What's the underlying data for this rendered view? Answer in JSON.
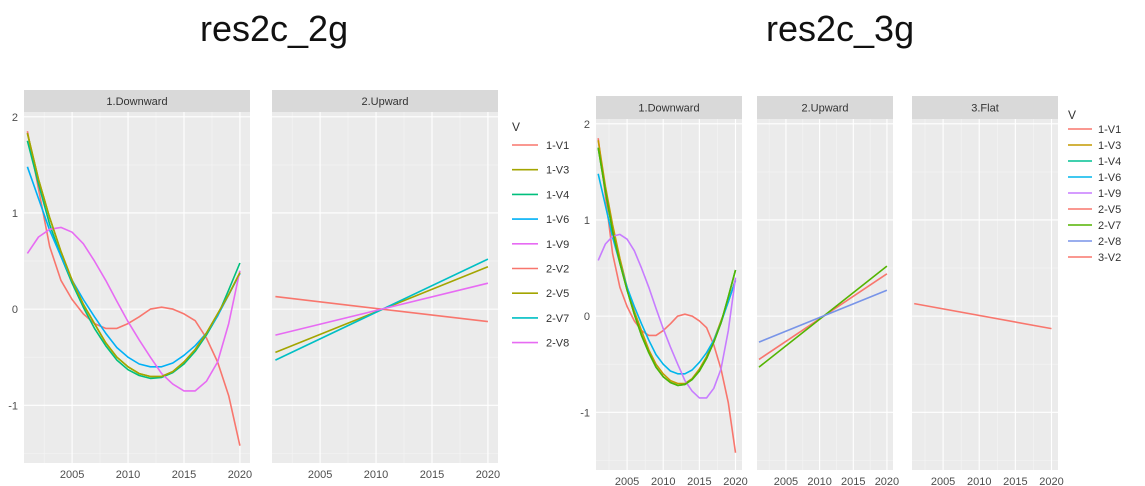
{
  "titles": {
    "left": "res2c_2g",
    "right": "res2c_3g"
  },
  "chart_data": [
    {
      "type": "line",
      "title": "res2c_2g",
      "x_ticks": [
        "2005",
        "2010",
        "2015",
        "2020"
      ],
      "y_ticks": [
        "-1",
        "0",
        "1",
        "2"
      ],
      "xlim": [
        2000.7,
        2020.9
      ],
      "ylim": [
        -1.6,
        2.05
      ],
      "legend_title": "V",
      "legend_position": "right",
      "panels": [
        {
          "name": "1.Downward",
          "series": [
            {
              "name": "1-V1",
              "color": "#F8766D",
              "x": [
                2001,
                2002,
                2003,
                2004,
                2005,
                2006,
                2007,
                2008,
                2009,
                2010,
                2011,
                2012,
                2013,
                2014,
                2015,
                2016,
                2017,
                2018,
                2019,
                2020
              ],
              "y": [
                1.85,
                1.25,
                0.65,
                0.3,
                0.1,
                -0.05,
                -0.15,
                -0.2,
                -0.2,
                -0.15,
                -0.08,
                0.0,
                0.02,
                0.0,
                -0.05,
                -0.12,
                -0.3,
                -0.55,
                -0.9,
                -1.42
              ]
            },
            {
              "name": "1-V3",
              "color": "#A3A500",
              "x": [
                2001,
                2002,
                2003,
                2004,
                2005,
                2006,
                2007,
                2008,
                2009,
                2010,
                2011,
                2012,
                2013,
                2014,
                2015,
                2016,
                2017,
                2018,
                2019,
                2020
              ],
              "y": [
                1.83,
                1.35,
                0.95,
                0.6,
                0.3,
                0.05,
                -0.15,
                -0.35,
                -0.5,
                -0.6,
                -0.67,
                -0.7,
                -0.7,
                -0.65,
                -0.55,
                -0.42,
                -0.25,
                -0.05,
                0.15,
                0.38
              ]
            },
            {
              "name": "1-V4",
              "color": "#00BF7D",
              "x": [
                2001,
                2002,
                2003,
                2004,
                2005,
                2006,
                2007,
                2008,
                2009,
                2010,
                2011,
                2012,
                2013,
                2014,
                2015,
                2016,
                2017,
                2018,
                2019,
                2020
              ],
              "y": [
                1.75,
                1.3,
                0.88,
                0.55,
                0.27,
                0.02,
                -0.2,
                -0.38,
                -0.53,
                -0.63,
                -0.69,
                -0.72,
                -0.71,
                -0.66,
                -0.57,
                -0.44,
                -0.27,
                -0.07,
                0.2,
                0.48
              ]
            },
            {
              "name": "1-V6",
              "color": "#00B0F6",
              "x": [
                2001,
                2002,
                2003,
                2004,
                2005,
                2006,
                2007,
                2008,
                2009,
                2010,
                2011,
                2012,
                2013,
                2014,
                2015,
                2016,
                2017,
                2018,
                2019,
                2020
              ],
              "y": [
                1.48,
                1.15,
                0.82,
                0.55,
                0.3,
                0.1,
                -0.08,
                -0.25,
                -0.4,
                -0.5,
                -0.57,
                -0.6,
                -0.6,
                -0.56,
                -0.48,
                -0.38,
                -0.25,
                -0.07,
                0.15,
                0.37
              ]
            },
            {
              "name": "1-V9",
              "color": "#E76BF3",
              "x": [
                2001,
                2002,
                2003,
                2004,
                2005,
                2006,
                2007,
                2008,
                2009,
                2010,
                2011,
                2012,
                2013,
                2014,
                2015,
                2016,
                2017,
                2018,
                2019,
                2020
              ],
              "y": [
                0.58,
                0.75,
                0.83,
                0.85,
                0.8,
                0.68,
                0.5,
                0.3,
                0.08,
                -0.13,
                -0.32,
                -0.5,
                -0.67,
                -0.78,
                -0.85,
                -0.85,
                -0.75,
                -0.55,
                -0.15,
                0.4
              ]
            },
            {
              "name": "2-V5",
              "color": "#A3A500",
              "x": [
                2001,
                2002,
                2003,
                2004,
                2005,
                2006,
                2007,
                2008,
                2009,
                2010,
                2011,
                2012,
                2013,
                2014,
                2015,
                2016,
                2017,
                2018,
                2019,
                2020
              ],
              "y": [
                1.83,
                1.35,
                0.95,
                0.6,
                0.3,
                0.05,
                -0.15,
                -0.35,
                -0.5,
                -0.6,
                -0.67,
                -0.7,
                -0.7,
                -0.65,
                -0.55,
                -0.42,
                -0.25,
                -0.05,
                0.15,
                0.38
              ]
            }
          ]
        },
        {
          "name": "2.Upward",
          "series": [
            {
              "name": "2-V2",
              "color": "#F8766D",
              "x": [
                2001,
                2020
              ],
              "y": [
                0.13,
                -0.13
              ]
            },
            {
              "name": "2-V5",
              "color": "#A3A500",
              "x": [
                2001,
                2020
              ],
              "y": [
                -0.45,
                0.44
              ]
            },
            {
              "name": "2-V7",
              "color": "#00BFC4",
              "x": [
                2001,
                2020
              ],
              "y": [
                -0.53,
                0.52
              ]
            },
            {
              "name": "2-V8",
              "color": "#E76BF3",
              "x": [
                2001,
                2020
              ],
              "y": [
                -0.27,
                0.27
              ]
            }
          ]
        }
      ],
      "legend": [
        {
          "name": "1-V1",
          "color": "#F8766D"
        },
        {
          "name": "1-V3",
          "color": "#A3A500"
        },
        {
          "name": "1-V4",
          "color": "#00BF7D"
        },
        {
          "name": "1-V6",
          "color": "#00B0F6"
        },
        {
          "name": "1-V9",
          "color": "#E76BF3"
        },
        {
          "name": "2-V2",
          "color": "#F8766D"
        },
        {
          "name": "2-V5",
          "color": "#A3A500"
        },
        {
          "name": "2-V7",
          "color": "#00BFC4"
        },
        {
          "name": "2-V8",
          "color": "#E76BF3"
        }
      ]
    },
    {
      "type": "line",
      "title": "res2c_3g",
      "x_ticks": [
        "2005",
        "2010",
        "2015",
        "2020"
      ],
      "y_ticks": [
        "-1",
        "0",
        "1",
        "2"
      ],
      "xlim": [
        2000.7,
        2020.9
      ],
      "ylim": [
        -1.6,
        2.05
      ],
      "legend_title": "V",
      "legend_position": "right",
      "panels": [
        {
          "name": "1.Downward",
          "series": [
            {
              "name": "1-V1",
              "color": "#F8766D",
              "x": [
                2001,
                2002,
                2003,
                2004,
                2005,
                2006,
                2007,
                2008,
                2009,
                2010,
                2011,
                2012,
                2013,
                2014,
                2015,
                2016,
                2017,
                2018,
                2019,
                2020
              ],
              "y": [
                1.85,
                1.25,
                0.65,
                0.3,
                0.1,
                -0.05,
                -0.15,
                -0.2,
                -0.2,
                -0.15,
                -0.08,
                0.0,
                0.02,
                0.0,
                -0.05,
                -0.12,
                -0.3,
                -0.55,
                -0.9,
                -1.42
              ]
            },
            {
              "name": "1-V3",
              "color": "#C49A00",
              "x": [
                2001,
                2002,
                2003,
                2004,
                2005,
                2006,
                2007,
                2008,
                2009,
                2010,
                2011,
                2012,
                2013,
                2014,
                2015,
                2016,
                2017,
                2018,
                2019,
                2020
              ],
              "y": [
                1.83,
                1.35,
                0.95,
                0.6,
                0.3,
                0.05,
                -0.15,
                -0.35,
                -0.5,
                -0.6,
                -0.67,
                -0.7,
                -0.7,
                -0.65,
                -0.55,
                -0.42,
                -0.25,
                -0.05,
                0.15,
                0.38
              ]
            },
            {
              "name": "1-V4",
              "color": "#00C094",
              "x": [
                2001,
                2002,
                2003,
                2004,
                2005,
                2006,
                2007,
                2008,
                2009,
                2010,
                2011,
                2012,
                2013,
                2014,
                2015,
                2016,
                2017,
                2018,
                2019,
                2020
              ],
              "y": [
                1.75,
                1.3,
                0.88,
                0.55,
                0.27,
                0.02,
                -0.2,
                -0.38,
                -0.53,
                -0.63,
                -0.69,
                -0.72,
                -0.71,
                -0.66,
                -0.57,
                -0.44,
                -0.27,
                -0.07,
                0.2,
                0.48
              ]
            },
            {
              "name": "1-V6",
              "color": "#00B6EB",
              "x": [
                2001,
                2002,
                2003,
                2004,
                2005,
                2006,
                2007,
                2008,
                2009,
                2010,
                2011,
                2012,
                2013,
                2014,
                2015,
                2016,
                2017,
                2018,
                2019,
                2020
              ],
              "y": [
                1.48,
                1.15,
                0.82,
                0.55,
                0.3,
                0.1,
                -0.08,
                -0.25,
                -0.4,
                -0.5,
                -0.57,
                -0.6,
                -0.6,
                -0.56,
                -0.48,
                -0.38,
                -0.25,
                -0.07,
                0.15,
                0.37
              ]
            },
            {
              "name": "1-V9",
              "color": "#C77CFF",
              "x": [
                2001,
                2002,
                2003,
                2004,
                2005,
                2006,
                2007,
                2008,
                2009,
                2010,
                2011,
                2012,
                2013,
                2014,
                2015,
                2016,
                2017,
                2018,
                2019,
                2020
              ],
              "y": [
                0.58,
                0.75,
                0.83,
                0.85,
                0.8,
                0.68,
                0.5,
                0.3,
                0.08,
                -0.13,
                -0.32,
                -0.5,
                -0.67,
                -0.78,
                -0.85,
                -0.85,
                -0.75,
                -0.55,
                -0.15,
                0.4
              ]
            },
            {
              "name": "2-V7",
              "color": "#53B400",
              "x": [
                2001,
                2002,
                2003,
                2004,
                2005,
                2006,
                2007,
                2008,
                2009,
                2010,
                2011,
                2012,
                2013,
                2014,
                2015,
                2016,
                2017,
                2018,
                2019,
                2020
              ],
              "y": [
                1.75,
                1.3,
                0.88,
                0.55,
                0.27,
                0.02,
                -0.2,
                -0.38,
                -0.53,
                -0.63,
                -0.69,
                -0.72,
                -0.71,
                -0.66,
                -0.57,
                -0.44,
                -0.27,
                -0.07,
                0.2,
                0.48
              ]
            }
          ]
        },
        {
          "name": "2.Upward",
          "series": [
            {
              "name": "2-V5",
              "color": "#F8766D",
              "x": [
                2001,
                2020
              ],
              "y": [
                -0.45,
                0.44
              ]
            },
            {
              "name": "2-V7",
              "color": "#53B400",
              "x": [
                2001,
                2020
              ],
              "y": [
                -0.53,
                0.52
              ]
            },
            {
              "name": "2-V8",
              "color": "#7894E8",
              "x": [
                2001,
                2020
              ],
              "y": [
                -0.27,
                0.27
              ]
            }
          ]
        },
        {
          "name": "3.Flat",
          "series": [
            {
              "name": "3-V2",
              "color": "#F8766D",
              "x": [
                2001,
                2020
              ],
              "y": [
                0.13,
                -0.13
              ]
            }
          ]
        }
      ],
      "legend": [
        {
          "name": "1-V1",
          "color": "#F8766D"
        },
        {
          "name": "1-V3",
          "color": "#C49A00"
        },
        {
          "name": "1-V4",
          "color": "#00C094"
        },
        {
          "name": "1-V6",
          "color": "#00B6EB"
        },
        {
          "name": "1-V9",
          "color": "#C77CFF"
        },
        {
          "name": "2-V5",
          "color": "#F8766D"
        },
        {
          "name": "2-V7",
          "color": "#53B400"
        },
        {
          "name": "2-V8",
          "color": "#7894E8"
        },
        {
          "name": "3-V2",
          "color": "#F8766D"
        }
      ]
    }
  ]
}
